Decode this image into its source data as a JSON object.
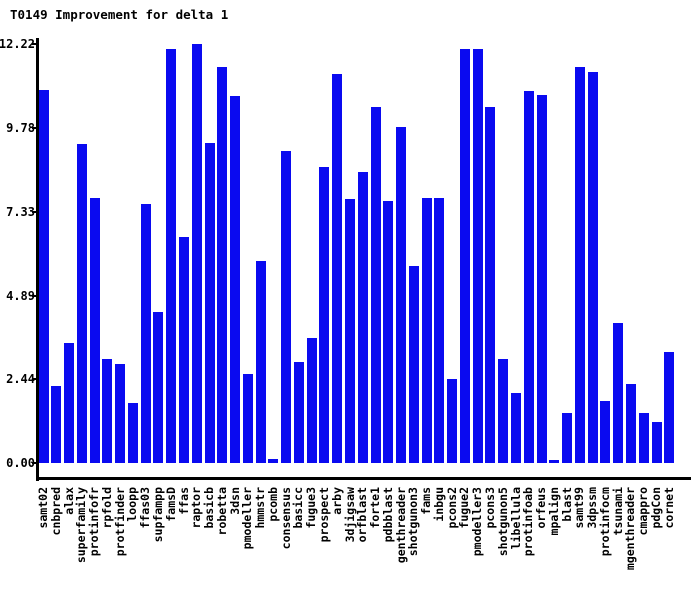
{
  "title": "T0149 Improvement for delta 1",
  "chart_data": {
    "type": "bar",
    "title": "T0149 Improvement for delta 1",
    "xlabel": "",
    "ylabel": "",
    "grid": false,
    "legend": null,
    "bar_color": "#0a0af0",
    "axis_color": "#000000",
    "ylim": [
      0,
      12.22
    ],
    "ytick_labels": [
      "0.00",
      "2.44",
      "4.89",
      "7.33",
      "9.78",
      "12.22"
    ],
    "yticks": [
      0.0,
      2.44,
      4.89,
      7.33,
      9.78,
      12.22
    ],
    "categories": [
      "samt02",
      "cnbpred",
      "alax",
      "superfamily",
      "protinfofr",
      "rpfold",
      "protfinder",
      "loopp",
      "ffas03",
      "supfampp",
      "famsD",
      "ffas",
      "raptor",
      "basicb",
      "robetta",
      "3dsn",
      "pmodeller",
      "hmmstr",
      "pcomb",
      "consensus",
      "basicc",
      "fugue3",
      "prospect",
      "arby",
      "3djigsaw",
      "orfblast",
      "forte1",
      "pdbblast",
      "genthreader",
      "shotgunon3",
      "fams",
      "inbgu",
      "pcons2",
      "fugue2",
      "pmodeller3",
      "pcons3",
      "shotgunon5",
      "libellula",
      "protinfoab",
      "orfeus",
      "mpalign",
      "blast",
      "samt99",
      "3dpssm",
      "protinfocm",
      "tsunami",
      "mgenthreader",
      "cmappro",
      "pdgCon",
      "cornet"
    ],
    "values": [
      10.9,
      2.25,
      3.5,
      9.3,
      7.75,
      3.05,
      2.9,
      1.75,
      7.55,
      4.4,
      12.1,
      6.6,
      12.22,
      9.35,
      11.55,
      10.7,
      2.6,
      5.9,
      0.12,
      9.1,
      2.95,
      3.65,
      8.65,
      11.35,
      7.7,
      8.5,
      10.4,
      7.65,
      9.8,
      5.75,
      7.75,
      7.75,
      2.45,
      12.1,
      12.1,
      10.4,
      3.05,
      2.05,
      10.85,
      10.75,
      0.08,
      1.45,
      11.55,
      11.4,
      1.8,
      4.1,
      2.3,
      1.45,
      1.2,
      3.25
    ]
  }
}
